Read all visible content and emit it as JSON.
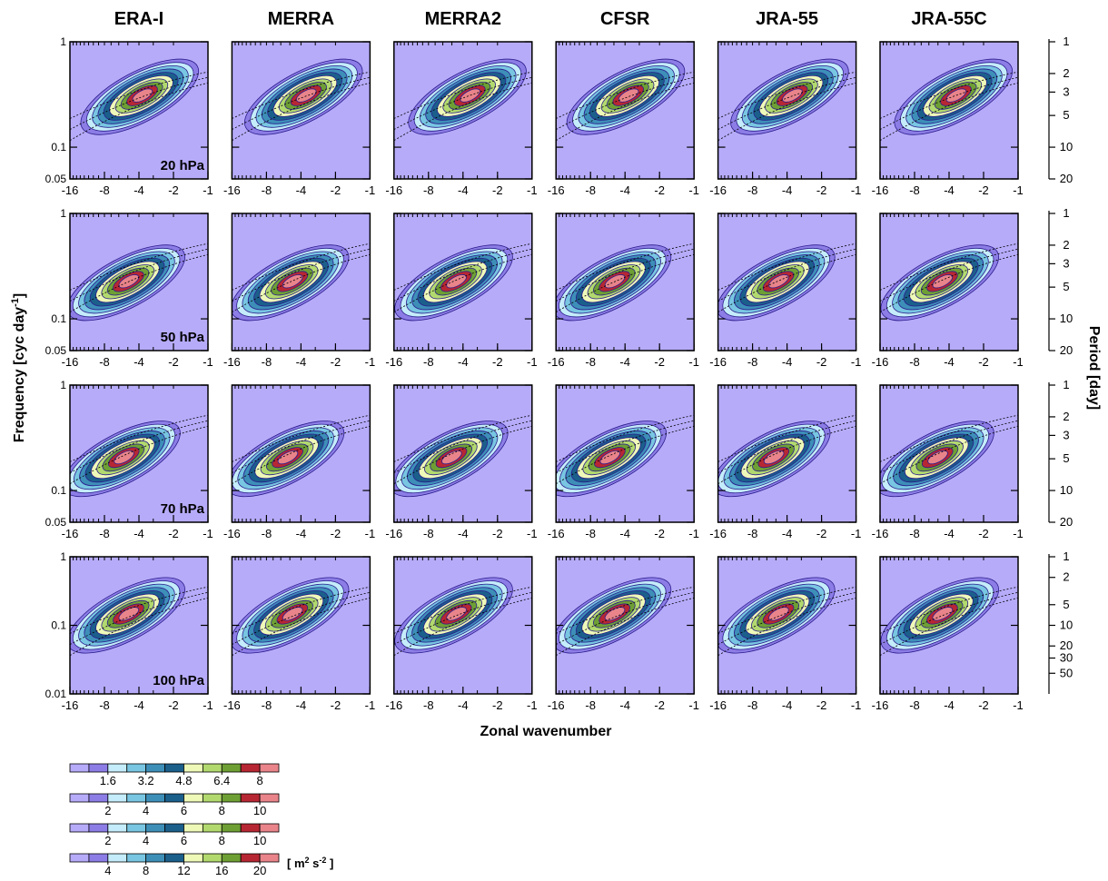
{
  "chart_data": {
    "type": "contour",
    "columns": [
      "ERA-I",
      "MERRA",
      "MERRA2",
      "CFSR",
      "JRA-55",
      "JRA-55C"
    ],
    "xlabel": "Zonal wavenumber",
    "ylabel": [
      "Frequency [cyc day",
      "-1",
      "]"
    ],
    "y2label": "Period [day]",
    "xscale": "log",
    "yscale": "log",
    "xlim": [
      -16,
      -1
    ],
    "xticks": [
      -16,
      -8,
      -4,
      -2,
      -1
    ],
    "rows": [
      {
        "label": "20 hPa",
        "ylim": [
          0.05,
          1
        ],
        "yticks": [
          0.05,
          0.1,
          1
        ],
        "y2ticks": [
          1,
          2,
          3,
          5,
          10,
          20
        ]
      },
      {
        "label": "50 hPa",
        "ylim": [
          0.05,
          1
        ],
        "yticks": [
          0.05,
          0.1,
          1
        ],
        "y2ticks": [
          1,
          2,
          3,
          5,
          10,
          20
        ]
      },
      {
        "label": "70 hPa",
        "ylim": [
          0.05,
          1
        ],
        "yticks": [
          0.05,
          0.1,
          1
        ],
        "y2ticks": [
          1,
          2,
          3,
          5,
          10,
          20
        ]
      },
      {
        "label": "100 hPa",
        "ylim": [
          0.01,
          1
        ],
        "yticks": [
          0.01,
          0.1,
          1
        ],
        "y2ticks": [
          1,
          2,
          5,
          10,
          20,
          30,
          50
        ]
      }
    ],
    "colors": [
      "#b6abf9",
      "#8c7de6",
      "#c4ecfa",
      "#78c6e2",
      "#3d8fb8",
      "#1b5f8b",
      "#eef9b8",
      "#b2d96e",
      "#6e9f34",
      "#b72733",
      "#e8848a",
      "#fcd7b4"
    ],
    "colorbars": [
      {
        "clim": [
          0,
          8.8
        ],
        "ticks": [
          1.6,
          3.2,
          4.8,
          6.4,
          8
        ]
      },
      {
        "clim": [
          0,
          11
        ],
        "ticks": [
          2,
          4,
          6,
          8,
          10
        ]
      },
      {
        "clim": [
          0,
          11
        ],
        "ticks": [
          2,
          4,
          6,
          8,
          10
        ]
      },
      {
        "clim": [
          0,
          22
        ],
        "ticks": [
          4,
          8,
          12,
          16,
          20
        ]
      }
    ],
    "units": [
      "[ m",
      "2",
      " s",
      "-2",
      " ]"
    ]
  }
}
